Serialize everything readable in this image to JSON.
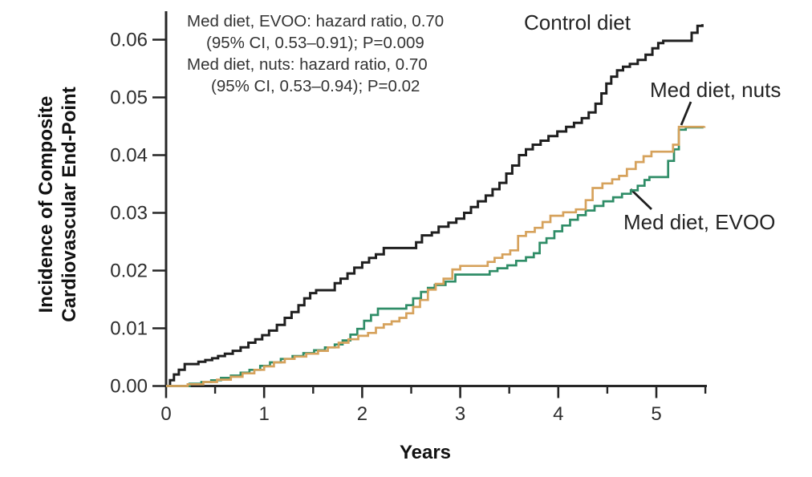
{
  "chart_data": {
    "type": "line",
    "subtype": "kaplan-meier-cumulative-incidence-steps",
    "xlabel": "Years",
    "ylabel_line1": "Incidence of Composite",
    "ylabel_line2": "Cardiovascular End-Point",
    "xlim": [
      0,
      5.52
    ],
    "ylim": [
      0,
      0.0649
    ],
    "grid": "off",
    "x_major_ticks": [
      0,
      1,
      2,
      3,
      4,
      5
    ],
    "x_minor_ticks": [
      0.5,
      1.5,
      2.5,
      3.5,
      4.5,
      5.5
    ],
    "y_tick_values": [
      0,
      0.01,
      0.02,
      0.03,
      0.04,
      0.05,
      0.06
    ],
    "y_ticks": [
      "0.00",
      "0.01",
      "0.02",
      "0.03",
      "0.04",
      "0.05",
      "0.06"
    ],
    "axis_color": "#262626",
    "annotation": {
      "line1": "Med diet, EVOO: hazard ratio, 0.70",
      "line2": "(95% CI, 0.53–0.91); P=0.009",
      "line3": "Med diet, nuts: hazard ratio, 0.70",
      "line4": "(95% CI, 0.53–0.94); P=0.02"
    },
    "series": [
      {
        "name": "control",
        "label": "Control diet",
        "color": "#1f1f1f",
        "points": [
          [
            0,
            0
          ],
          [
            0.04,
            0.001
          ],
          [
            0.08,
            0.002
          ],
          [
            0.13,
            0.0028
          ],
          [
            0.19,
            0.0038
          ],
          [
            0.33,
            0.0042
          ],
          [
            0.4,
            0.0045
          ],
          [
            0.47,
            0.0048
          ],
          [
            0.53,
            0.0052
          ],
          [
            0.6,
            0.0056
          ],
          [
            0.68,
            0.0061
          ],
          [
            0.76,
            0.0067
          ],
          [
            0.84,
            0.0075
          ],
          [
            0.91,
            0.0081
          ],
          [
            0.98,
            0.0088
          ],
          [
            1.05,
            0.0096
          ],
          [
            1.13,
            0.0106
          ],
          [
            1.21,
            0.0118
          ],
          [
            1.28,
            0.0128
          ],
          [
            1.35,
            0.014
          ],
          [
            1.41,
            0.0152
          ],
          [
            1.47,
            0.0161
          ],
          [
            1.53,
            0.0166
          ],
          [
            1.72,
            0.0178
          ],
          [
            1.78,
            0.0186
          ],
          [
            1.85,
            0.0195
          ],
          [
            1.92,
            0.0205
          ],
          [
            2.0,
            0.0214
          ],
          [
            2.07,
            0.0222
          ],
          [
            2.14,
            0.0228
          ],
          [
            2.22,
            0.0239
          ],
          [
            2.55,
            0.0249
          ],
          [
            2.61,
            0.0261
          ],
          [
            2.71,
            0.0266
          ],
          [
            2.78,
            0.0276
          ],
          [
            2.88,
            0.0283
          ],
          [
            2.96,
            0.029
          ],
          [
            3.04,
            0.03
          ],
          [
            3.11,
            0.031
          ],
          [
            3.18,
            0.032
          ],
          [
            3.26,
            0.033
          ],
          [
            3.33,
            0.0341
          ],
          [
            3.4,
            0.0352
          ],
          [
            3.47,
            0.0368
          ],
          [
            3.53,
            0.0382
          ],
          [
            3.6,
            0.04
          ],
          [
            3.67,
            0.041
          ],
          [
            3.74,
            0.0418
          ],
          [
            3.82,
            0.0425
          ],
          [
            3.9,
            0.0433
          ],
          [
            3.99,
            0.0441
          ],
          [
            4.08,
            0.0449
          ],
          [
            4.16,
            0.0456
          ],
          [
            4.24,
            0.0464
          ],
          [
            4.31,
            0.0474
          ],
          [
            4.38,
            0.0489
          ],
          [
            4.44,
            0.0507
          ],
          [
            4.49,
            0.0524
          ],
          [
            4.54,
            0.0536
          ],
          [
            4.6,
            0.0547
          ],
          [
            4.66,
            0.0553
          ],
          [
            4.73,
            0.0558
          ],
          [
            4.81,
            0.0565
          ],
          [
            4.89,
            0.0574
          ],
          [
            4.96,
            0.0585
          ],
          [
            5.02,
            0.0594
          ],
          [
            5.07,
            0.0598
          ],
          [
            5.36,
            0.0612
          ],
          [
            5.42,
            0.0624
          ],
          [
            5.47,
            0.0627
          ]
        ]
      },
      {
        "name": "med-diet-nuts",
        "label": "Med diet, nuts",
        "color": "#d6a25c",
        "points": [
          [
            0,
            0
          ],
          [
            0.22,
            0.0003
          ],
          [
            0.38,
            0.0007
          ],
          [
            0.52,
            0.0011
          ],
          [
            0.66,
            0.0016
          ],
          [
            0.78,
            0.0022
          ],
          [
            0.9,
            0.0028
          ],
          [
            1.0,
            0.0034
          ],
          [
            1.1,
            0.0041
          ],
          [
            1.21,
            0.0047
          ],
          [
            1.31,
            0.0051
          ],
          [
            1.43,
            0.0056
          ],
          [
            1.55,
            0.0061
          ],
          [
            1.65,
            0.0067
          ],
          [
            1.76,
            0.0075
          ],
          [
            1.86,
            0.0081
          ],
          [
            1.96,
            0.0087
          ],
          [
            2.06,
            0.0092
          ],
          [
            2.14,
            0.0101
          ],
          [
            2.22,
            0.0107
          ],
          [
            2.3,
            0.0112
          ],
          [
            2.38,
            0.0118
          ],
          [
            2.45,
            0.0126
          ],
          [
            2.52,
            0.0137
          ],
          [
            2.59,
            0.0149
          ],
          [
            2.67,
            0.0167
          ],
          [
            2.75,
            0.0177
          ],
          [
            2.83,
            0.0186
          ],
          [
            2.92,
            0.0202
          ],
          [
            3.0,
            0.0208
          ],
          [
            3.28,
            0.0215
          ],
          [
            3.35,
            0.0222
          ],
          [
            3.43,
            0.0228
          ],
          [
            3.51,
            0.0235
          ],
          [
            3.59,
            0.026
          ],
          [
            3.67,
            0.0267
          ],
          [
            3.76,
            0.0274
          ],
          [
            3.84,
            0.0284
          ],
          [
            3.92,
            0.0295
          ],
          [
            4.05,
            0.0301
          ],
          [
            4.18,
            0.0306
          ],
          [
            4.28,
            0.0322
          ],
          [
            4.35,
            0.0343
          ],
          [
            4.45,
            0.0351
          ],
          [
            4.55,
            0.0358
          ],
          [
            4.62,
            0.0364
          ],
          [
            4.7,
            0.0376
          ],
          [
            4.79,
            0.0388
          ],
          [
            4.87,
            0.0398
          ],
          [
            4.95,
            0.0406
          ],
          [
            5.17,
            0.0418
          ],
          [
            5.23,
            0.0449
          ],
          [
            5.49,
            0.045
          ]
        ]
      },
      {
        "name": "med-diet-evoo",
        "label": "Med diet, EVOO",
        "color": "#2f8d67",
        "points": [
          [
            0,
            0
          ],
          [
            0.24,
            0.0004
          ],
          [
            0.36,
            0.0007
          ],
          [
            0.46,
            0.001
          ],
          [
            0.56,
            0.0014
          ],
          [
            0.66,
            0.0018
          ],
          [
            0.76,
            0.0023
          ],
          [
            0.85,
            0.0028
          ],
          [
            0.96,
            0.0035
          ],
          [
            1.06,
            0.0041
          ],
          [
            1.17,
            0.0047
          ],
          [
            1.29,
            0.0052
          ],
          [
            1.4,
            0.0057
          ],
          [
            1.51,
            0.0062
          ],
          [
            1.62,
            0.0067
          ],
          [
            1.72,
            0.0072
          ],
          [
            1.8,
            0.0079
          ],
          [
            1.88,
            0.0089
          ],
          [
            1.95,
            0.0099
          ],
          [
            2.02,
            0.0113
          ],
          [
            2.09,
            0.0123
          ],
          [
            2.16,
            0.0134
          ],
          [
            2.45,
            0.014
          ],
          [
            2.52,
            0.0152
          ],
          [
            2.6,
            0.0163
          ],
          [
            2.67,
            0.017
          ],
          [
            2.74,
            0.0175
          ],
          [
            2.85,
            0.0181
          ],
          [
            2.95,
            0.0193
          ],
          [
            3.3,
            0.0199
          ],
          [
            3.38,
            0.0204
          ],
          [
            3.48,
            0.0209
          ],
          [
            3.57,
            0.0217
          ],
          [
            3.67,
            0.0223
          ],
          [
            3.75,
            0.023
          ],
          [
            3.81,
            0.0248
          ],
          [
            3.88,
            0.0256
          ],
          [
            3.96,
            0.0268
          ],
          [
            4.04,
            0.0278
          ],
          [
            4.12,
            0.0288
          ],
          [
            4.2,
            0.0296
          ],
          [
            4.28,
            0.0304
          ],
          [
            4.37,
            0.0312
          ],
          [
            4.46,
            0.032
          ],
          [
            4.56,
            0.0327
          ],
          [
            4.65,
            0.0333
          ],
          [
            4.74,
            0.0339
          ],
          [
            4.81,
            0.0347
          ],
          [
            4.88,
            0.0357
          ],
          [
            4.93,
            0.0362
          ],
          [
            5.12,
            0.039
          ],
          [
            5.18,
            0.041
          ],
          [
            5.23,
            0.0444
          ],
          [
            5.3,
            0.0448
          ],
          [
            5.47,
            0.045
          ]
        ]
      }
    ]
  }
}
